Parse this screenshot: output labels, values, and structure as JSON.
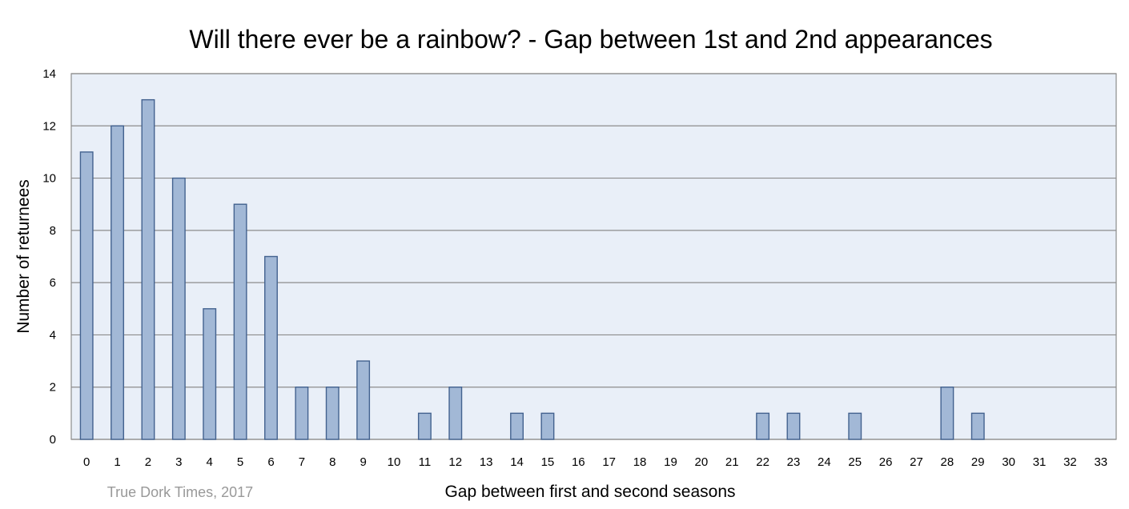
{
  "chart_data": {
    "type": "bar",
    "title": "Will there ever be a rainbow? - Gap between 1st and 2nd appearances",
    "xlabel": "Gap between first and second seasons",
    "ylabel": "Number of returnees",
    "credit": "True Dork Times, 2017",
    "categories": [
      "0",
      "1",
      "2",
      "3",
      "4",
      "5",
      "6",
      "7",
      "8",
      "9",
      "10",
      "11",
      "12",
      "13",
      "14",
      "15",
      "16",
      "17",
      "18",
      "19",
      "20",
      "21",
      "22",
      "23",
      "24",
      "25",
      "26",
      "27",
      "28",
      "29",
      "30",
      "31",
      "32",
      "33"
    ],
    "values": [
      11,
      12,
      13,
      10,
      5,
      9,
      7,
      2,
      2,
      3,
      0,
      1,
      2,
      0,
      1,
      1,
      0,
      0,
      0,
      0,
      0,
      0,
      1,
      1,
      0,
      1,
      0,
      0,
      2,
      1,
      0,
      0,
      0,
      0
    ],
    "ylim": [
      0,
      14
    ],
    "yticks": [
      0,
      2,
      4,
      6,
      8,
      10,
      12,
      14
    ],
    "grid": true,
    "legend": "none",
    "colors": {
      "bar_fill": "#a2b8d6",
      "bar_stroke": "#43628f",
      "plot_background": "#e9eff8",
      "gridline": "#8c8c8c"
    }
  }
}
